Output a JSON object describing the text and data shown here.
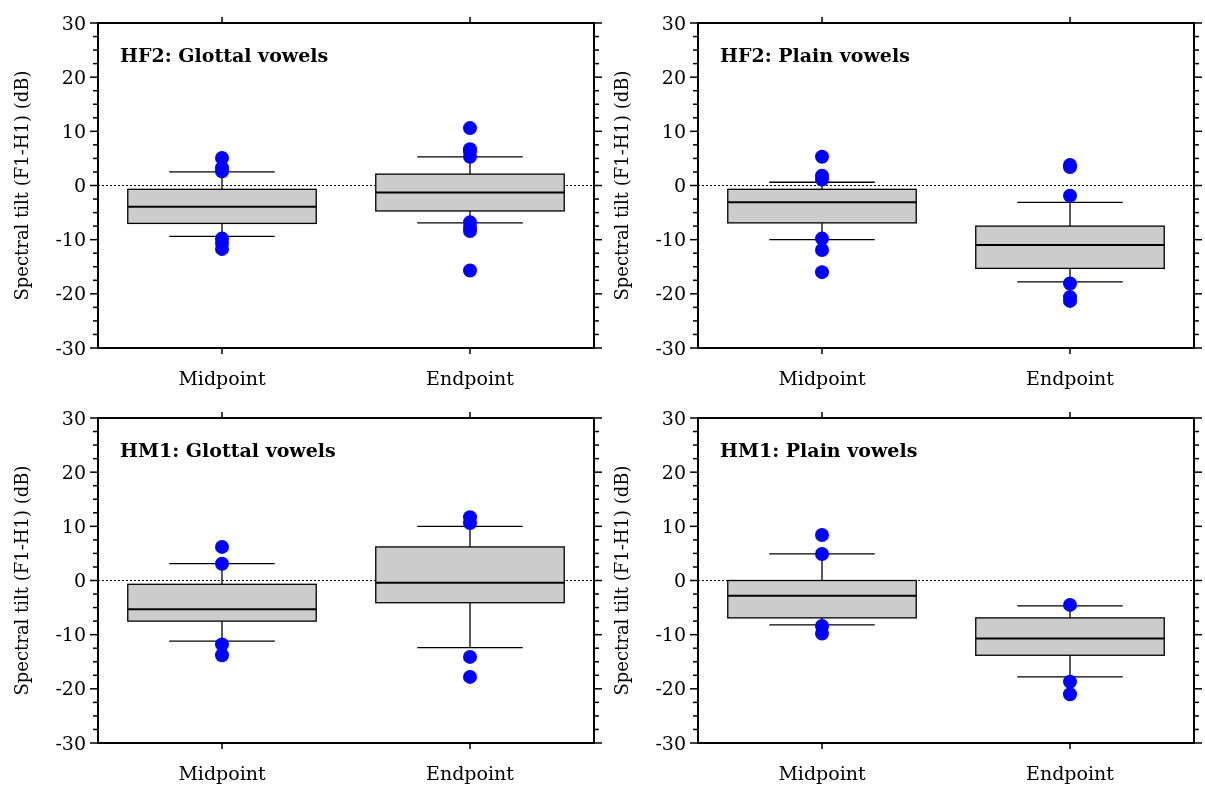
{
  "chart_data": [
    {
      "type": "box",
      "title": "HF2: Glottal vowels",
      "ylabel": "Spectral tilt (F1-H1) (dB)",
      "categories": [
        "Midpoint",
        "Endpoint"
      ],
      "ylim": [
        -30,
        30
      ],
      "yticks": [
        -30,
        {
          "value": -27.5,
          "label": null
        },
        {
          "value": -25,
          "label": null
        },
        {
          "value": -22.5,
          "label": null
        },
        -20,
        {
          "value": -17.5,
          "label": null
        },
        {
          "value": -15,
          "label": null
        },
        {
          "value": -12.5,
          "label": null
        },
        -10,
        {
          "value": -7.5,
          "label": null
        },
        {
          "value": -5,
          "label": null
        },
        {
          "value": -2.5,
          "label": null
        },
        0,
        {
          "value": 2.5,
          "label": null
        },
        {
          "value": 5,
          "label": null
        },
        {
          "value": 7.5,
          "label": null
        },
        10,
        {
          "value": 12.5,
          "label": null
        },
        {
          "value": 15,
          "label": null
        },
        {
          "value": 17.5,
          "label": null
        },
        20,
        {
          "value": 22.5,
          "label": null
        },
        {
          "value": 25,
          "label": null
        },
        {
          "value": 27.5,
          "label": null
        },
        30
      ],
      "grid": false,
      "ref_lines": [
        {
          "axis": "y",
          "value": 0,
          "line_style": "dotted"
        }
      ],
      "series": [
        {
          "color": "#cccccc",
          "boxes": [
            {
              "low": -9.4,
              "q1": -7.0,
              "median": -3.9,
              "q3": -0.7,
              "high": 2.5,
              "outliers": [
                5.1,
                3.3,
                2.6,
                -9.8,
                -10.6,
                -11.7
              ]
            },
            {
              "low": -6.9,
              "q1": -4.7,
              "median": -1.3,
              "q3": 2.1,
              "high": 5.3,
              "outliers": [
                10.6,
                6.7,
                6.3,
                5.3,
                -6.8,
                -7.8,
                -8.4,
                -15.7
              ]
            }
          ]
        }
      ]
    },
    {
      "type": "box",
      "title": "HF2: Plain vowels",
      "ylabel": "Spectral tilt (F1-H1) (dB)",
      "categories": [
        "Midpoint",
        "Endpoint"
      ],
      "ylim": [
        -30,
        30
      ],
      "yticks": [
        -30,
        {
          "value": -27.5,
          "label": null
        },
        {
          "value": -25,
          "label": null
        },
        {
          "value": -22.5,
          "label": null
        },
        -20,
        {
          "value": -17.5,
          "label": null
        },
        {
          "value": -15,
          "label": null
        },
        {
          "value": -12.5,
          "label": null
        },
        -10,
        {
          "value": -7.5,
          "label": null
        },
        {
          "value": -5,
          "label": null
        },
        {
          "value": -2.5,
          "label": null
        },
        0,
        {
          "value": 2.5,
          "label": null
        },
        {
          "value": 5,
          "label": null
        },
        {
          "value": 7.5,
          "label": null
        },
        10,
        {
          "value": 12.5,
          "label": null
        },
        {
          "value": 15,
          "label": null
        },
        {
          "value": 17.5,
          "label": null
        },
        20,
        {
          "value": 22.5,
          "label": null
        },
        {
          "value": 25,
          "label": null
        },
        {
          "value": 27.5,
          "label": null
        },
        30
      ],
      "grid": false,
      "ref_lines": [
        {
          "axis": "y",
          "value": 0,
          "line_style": "dotted"
        }
      ],
      "series": [
        {
          "color": "#cccccc",
          "boxes": [
            {
              "low": -10.0,
              "q1": -6.9,
              "median": -3.1,
              "q3": -0.7,
              "high": 0.6,
              "outliers": [
                5.3,
                1.8,
                1.1,
                -9.8,
                -11.9,
                -16.0
              ]
            },
            {
              "low": -17.8,
              "q1": -15.3,
              "median": -11.0,
              "q3": -7.5,
              "high": -3.1,
              "outliers": [
                3.8,
                3.4,
                -1.9,
                -18.1,
                -20.6,
                -21.3
              ]
            }
          ]
        }
      ]
    },
    {
      "type": "box",
      "title": "HM1: Glottal vowels",
      "ylabel": "Spectral tilt (F1-H1) (dB)",
      "categories": [
        "Midpoint",
        "Endpoint"
      ],
      "ylim": [
        -30,
        30
      ],
      "yticks": [
        -30,
        {
          "value": -27.5,
          "label": null
        },
        {
          "value": -25,
          "label": null
        },
        {
          "value": -22.5,
          "label": null
        },
        -20,
        {
          "value": -17.5,
          "label": null
        },
        {
          "value": -15,
          "label": null
        },
        {
          "value": -12.5,
          "label": null
        },
        -10,
        {
          "value": -7.5,
          "label": null
        },
        {
          "value": -5,
          "label": null
        },
        {
          "value": -2.5,
          "label": null
        },
        0,
        {
          "value": 2.5,
          "label": null
        },
        {
          "value": 5,
          "label": null
        },
        {
          "value": 7.5,
          "label": null
        },
        10,
        {
          "value": 12.5,
          "label": null
        },
        {
          "value": 15,
          "label": null
        },
        {
          "value": 17.5,
          "label": null
        },
        20,
        {
          "value": 22.5,
          "label": null
        },
        {
          "value": 25,
          "label": null
        },
        {
          "value": 27.5,
          "label": null
        },
        30
      ],
      "grid": false,
      "ref_lines": [
        {
          "axis": "y",
          "value": 0,
          "line_style": "dotted"
        }
      ],
      "series": [
        {
          "color": "#cccccc",
          "boxes": [
            {
              "low": -11.2,
              "q1": -7.5,
              "median": -5.3,
              "q3": -0.7,
              "high": 3.1,
              "outliers": [
                6.2,
                3.1,
                -11.8,
                -13.8
              ]
            },
            {
              "low": -12.4,
              "q1": -4.1,
              "median": -0.4,
              "q3": 6.2,
              "high": 10.0,
              "outliers": [
                11.7,
                10.6,
                -14.1,
                -17.8
              ]
            }
          ]
        }
      ]
    },
    {
      "type": "box",
      "title": "HM1: Plain vowels",
      "ylabel": "Spectral tilt (F1-H1) (dB)",
      "categories": [
        "Midpoint",
        "Endpoint"
      ],
      "ylim": [
        -30,
        30
      ],
      "yticks": [
        -30,
        {
          "value": -27.5,
          "label": null
        },
        {
          "value": -25,
          "label": null
        },
        {
          "value": -22.5,
          "label": null
        },
        -20,
        {
          "value": -17.5,
          "label": null
        },
        {
          "value": -15,
          "label": null
        },
        {
          "value": -12.5,
          "label": null
        },
        -10,
        {
          "value": -7.5,
          "label": null
        },
        {
          "value": -5,
          "label": null
        },
        {
          "value": -2.5,
          "label": null
        },
        0,
        {
          "value": 2.5,
          "label": null
        },
        {
          "value": 5,
          "label": null
        },
        {
          "value": 7.5,
          "label": null
        },
        10,
        {
          "value": 12.5,
          "label": null
        },
        {
          "value": 15,
          "label": null
        },
        {
          "value": 17.5,
          "label": null
        },
        20,
        {
          "value": 22.5,
          "label": null
        },
        {
          "value": 25,
          "label": null
        },
        {
          "value": 27.5,
          "label": null
        },
        30
      ],
      "grid": false,
      "ref_lines": [
        {
          "axis": "y",
          "value": 0,
          "line_style": "dotted"
        }
      ],
      "series": [
        {
          "color": "#cccccc",
          "boxes": [
            {
              "low": -8.2,
              "q1": -6.9,
              "median": -2.8,
              "q3": 0.0,
              "high": 4.9,
              "outliers": [
                8.4,
                4.9,
                -8.4,
                -9.8
              ]
            },
            {
              "low": -17.8,
              "q1": -13.8,
              "median": -10.7,
              "q3": -6.9,
              "high": -4.7,
              "outliers": [
                -4.5,
                -18.7,
                -21.0
              ]
            }
          ]
        }
      ]
    }
  ]
}
